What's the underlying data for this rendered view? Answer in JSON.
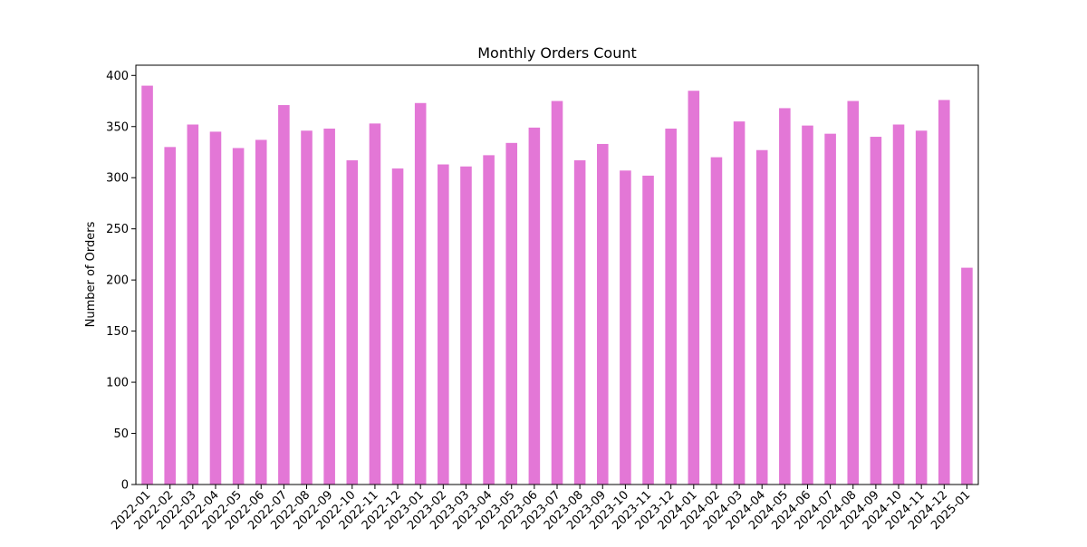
{
  "chart_data": {
    "type": "bar",
    "title": "Monthly Orders Count",
    "xlabel": "",
    "ylabel": "Number of Orders",
    "categories": [
      "2022-01",
      "2022-02",
      "2022-03",
      "2022-04",
      "2022-05",
      "2022-06",
      "2022-07",
      "2022-08",
      "2022-09",
      "2022-10",
      "2022-11",
      "2022-12",
      "2023-01",
      "2023-02",
      "2023-03",
      "2023-04",
      "2023-05",
      "2023-06",
      "2023-07",
      "2023-08",
      "2023-09",
      "2023-10",
      "2023-11",
      "2023-12",
      "2024-01",
      "2024-02",
      "2024-03",
      "2024-04",
      "2024-05",
      "2024-06",
      "2024-07",
      "2024-08",
      "2024-09",
      "2024-10",
      "2024-11",
      "2024-12",
      "2025-01"
    ],
    "values": [
      390,
      330,
      352,
      345,
      329,
      337,
      371,
      346,
      348,
      317,
      353,
      309,
      373,
      313,
      311,
      322,
      334,
      349,
      375,
      317,
      333,
      307,
      302,
      348,
      385,
      320,
      355,
      327,
      368,
      351,
      343,
      375,
      340,
      352,
      346,
      376,
      212
    ],
    "ylim": [
      0,
      410
    ],
    "yticks": [
      0,
      50,
      100,
      150,
      200,
      250,
      300,
      350,
      400
    ],
    "bar_color": "#e377d6",
    "grid": false,
    "legend": "none"
  }
}
